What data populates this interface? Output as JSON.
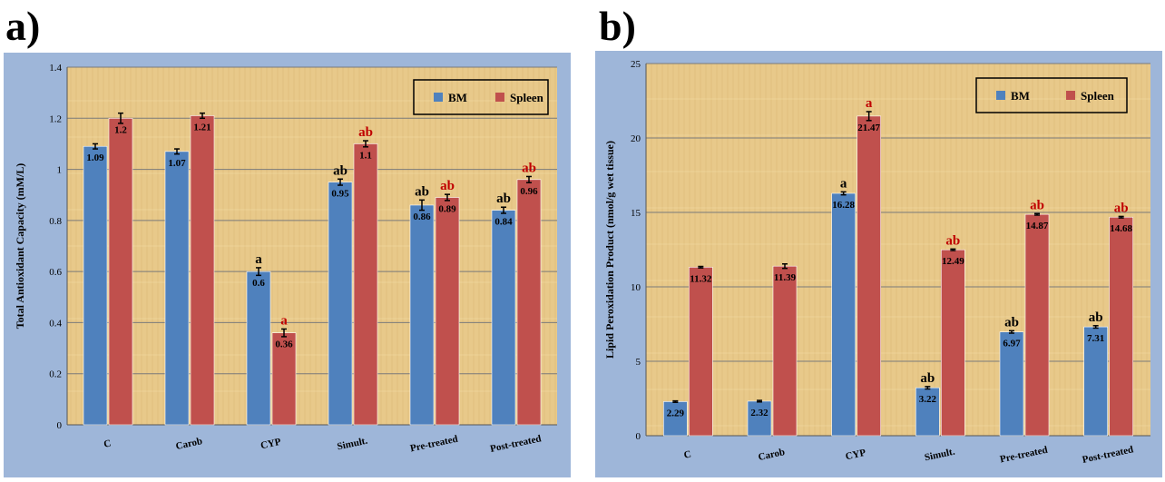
{
  "panels": [
    {
      "label": "a)"
    },
    {
      "label": "b)"
    }
  ],
  "colors": {
    "bm": "#4f81bd",
    "spleen": "#c0504d",
    "sig_bm": "#000000",
    "sig_spleen": "#c00000",
    "background": "#e8c98a",
    "frame": "#9eb6d9"
  },
  "chart_data": [
    {
      "type": "bar",
      "categories": [
        "C",
        "Carob",
        "CYP",
        "Simult.",
        "Pre-treated",
        "Post-treated"
      ],
      "series": [
        {
          "name": "BM",
          "values": [
            1.09,
            1.07,
            0.6,
            0.95,
            0.86,
            0.84
          ],
          "labels": [
            "1.09",
            "1.07",
            "0.6",
            "0.95",
            "0.86",
            "0.84"
          ],
          "errors": [
            0.01,
            0.01,
            0.015,
            0.012,
            0.02,
            0.012
          ],
          "sig": [
            "",
            "",
            "a",
            "ab",
            "ab",
            "ab"
          ]
        },
        {
          "name": "Spleen",
          "values": [
            1.2,
            1.21,
            0.36,
            1.1,
            0.89,
            0.96
          ],
          "labels": [
            "1.2",
            "1.21",
            "0.36",
            "1.1",
            "0.89",
            "0.96"
          ],
          "errors": [
            0.02,
            0.01,
            0.015,
            0.012,
            0.012,
            0.012
          ],
          "sig": [
            "",
            "",
            "a",
            "ab",
            "ab",
            "ab"
          ]
        }
      ],
      "ylabel": "Total Antioxidant Capacity (mM/L)",
      "ylim": [
        0,
        1.4
      ],
      "yticks": [
        "0",
        "0.2",
        "0.4",
        "0.6",
        "0.8",
        "1",
        "1.2",
        "1.4"
      ],
      "grid": true,
      "legend": "top-right"
    },
    {
      "type": "bar",
      "categories": [
        "C",
        "Carob",
        "CYP",
        "Simult.",
        "Pre-treated",
        "Post-treated"
      ],
      "series": [
        {
          "name": "BM",
          "values": [
            2.29,
            2.32,
            16.28,
            3.22,
            6.97,
            7.31
          ],
          "labels": [
            "2.29",
            "2.32",
            "16.28",
            "3.22",
            "6.97",
            "7.31"
          ],
          "errors": [
            0.05,
            0.05,
            0.1,
            0.08,
            0.08,
            0.08
          ],
          "sig": [
            "",
            "",
            "a",
            "ab",
            "ab",
            "ab"
          ]
        },
        {
          "name": "Spleen",
          "values": [
            11.32,
            11.39,
            21.47,
            12.49,
            14.87,
            14.68
          ],
          "labels": [
            "11.32",
            "11.39",
            "21.47",
            "12.49",
            "14.87",
            "14.68"
          ],
          "errors": [
            0.05,
            0.15,
            0.3,
            0.05,
            0.05,
            0.05
          ],
          "sig": [
            "",
            "",
            "a",
            "ab",
            "ab",
            "ab"
          ]
        }
      ],
      "ylabel": "Lipid Peroxidation Product (nmol/g wet tissue)",
      "ylim": [
        0,
        25
      ],
      "yticks": [
        "0",
        "5",
        "10",
        "15",
        "20",
        "25"
      ],
      "grid": true,
      "legend": "top-right"
    }
  ]
}
